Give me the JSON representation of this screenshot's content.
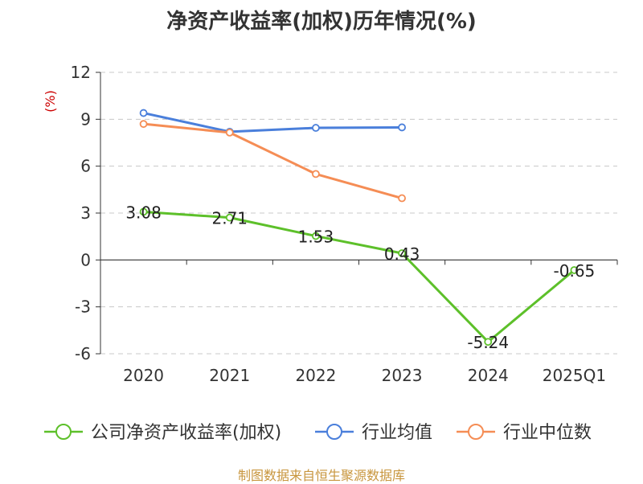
{
  "chart_data": {
    "type": "line",
    "title": "净资产收益率(加权)历年情况(%)",
    "ylabel": "(%)",
    "xlabel": "",
    "categories": [
      "2020",
      "2021",
      "2022",
      "2023",
      "2024",
      "2025Q1"
    ],
    "ylim": [
      -6,
      12
    ],
    "yticks": [
      12,
      9,
      6,
      3,
      0,
      -3,
      -6
    ],
    "grid": true,
    "legend_position": "bottom",
    "series": [
      {
        "name": "公司净资产收益率(加权)",
        "color": "#5dc02a",
        "values": [
          3.08,
          2.71,
          1.53,
          0.43,
          -5.24,
          -0.65
        ],
        "labels": [
          "3.08",
          "2.71",
          "1.53",
          "0.43",
          "-5.24",
          "-0.65"
        ]
      },
      {
        "name": "行业均值",
        "color": "#4a7fdb",
        "values": [
          9.4,
          8.2,
          8.45,
          8.48,
          null,
          null
        ]
      },
      {
        "name": "行业中位数",
        "color": "#f58d55",
        "values": [
          8.7,
          8.15,
          5.5,
          3.95,
          null,
          null
        ]
      }
    ],
    "source": "制图数据来自恒生聚源数据库"
  }
}
